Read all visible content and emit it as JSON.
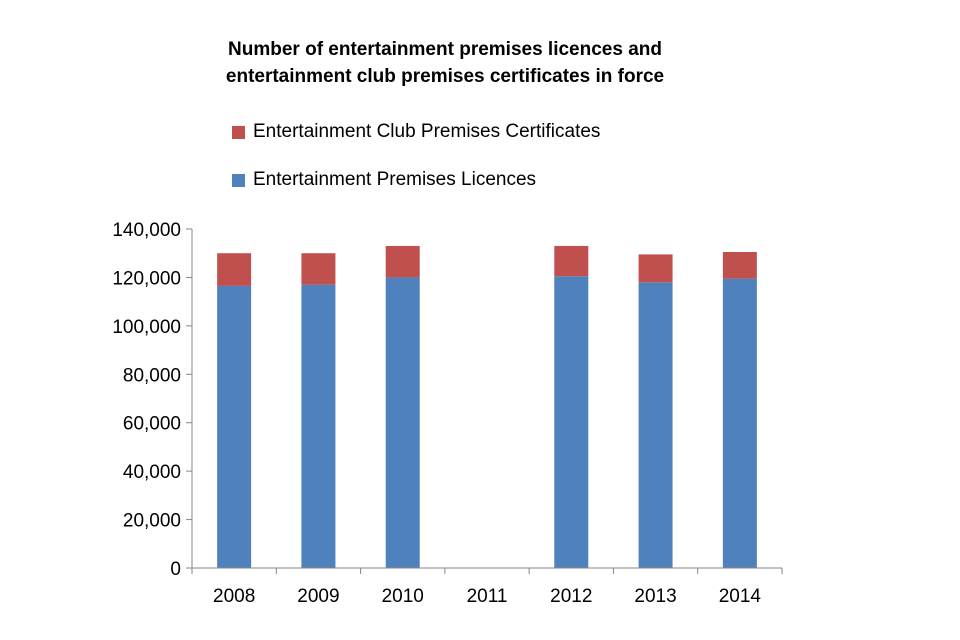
{
  "chart_data": {
    "type": "bar",
    "stacked": true,
    "title_line1": "Number of entertainment  premises licences and",
    "title_line2": "entertainment  club premises certificates in force",
    "categories": [
      "2008",
      "2009",
      "2010",
      "2011",
      "2012",
      "2013",
      "2014"
    ],
    "series": [
      {
        "name": "Entertainment Premises Licences",
        "color": "#4F81BD",
        "values": [
          116500,
          117000,
          120000,
          null,
          120500,
          118000,
          119500
        ]
      },
      {
        "name": "Entertainment Club Premises Certificates",
        "color": "#C0504D",
        "values": [
          13500,
          13000,
          13000,
          null,
          12500,
          11500,
          11000
        ]
      }
    ],
    "ylim": [
      0,
      140000
    ],
    "yticks": [
      "0",
      "20,000",
      "40,000",
      "60,000",
      "80,000",
      "100,000",
      "120,000",
      "140,000"
    ],
    "legend_position": "top",
    "grid": false
  }
}
